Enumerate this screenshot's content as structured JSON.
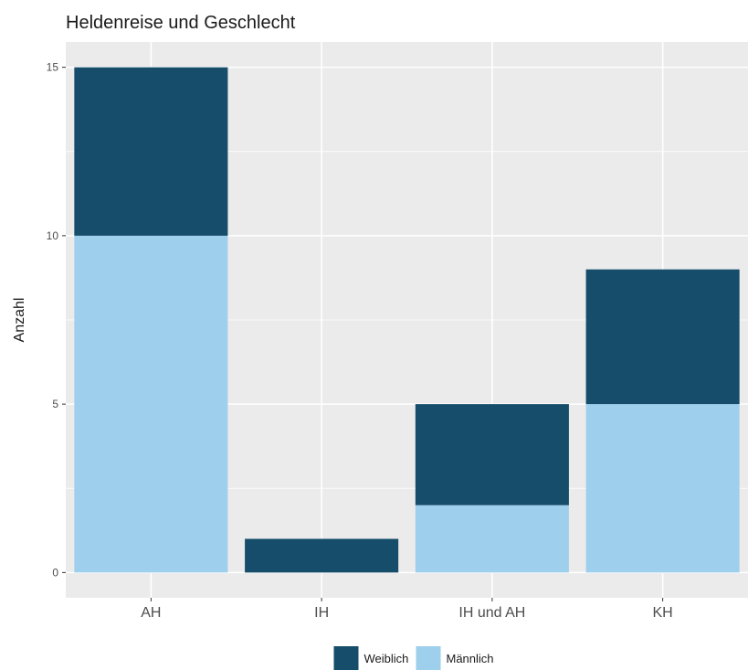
{
  "chart_data": {
    "type": "bar",
    "stacked": true,
    "title": "Heldenreise und Geschlecht",
    "xlabel": "",
    "ylabel": "Anzahl",
    "categories": [
      "AH",
      "IH",
      "IH und AH",
      "KH"
    ],
    "series": [
      {
        "name": "Männlich",
        "values": [
          10,
          0,
          2,
          5
        ],
        "color": "#9ecfec"
      },
      {
        "name": "Weiblich",
        "values": [
          5,
          1,
          3,
          4
        ],
        "color": "#154d6a"
      }
    ],
    "legend_order": [
      "Weiblich",
      "Männlich"
    ],
    "ylim": [
      -0.75,
      15.75
    ],
    "yticks": [
      0,
      5,
      10,
      15
    ],
    "grid": true,
    "legend_position": "bottom",
    "colors": {
      "panel": "#ebebeb",
      "grid": "#ffffff"
    }
  }
}
